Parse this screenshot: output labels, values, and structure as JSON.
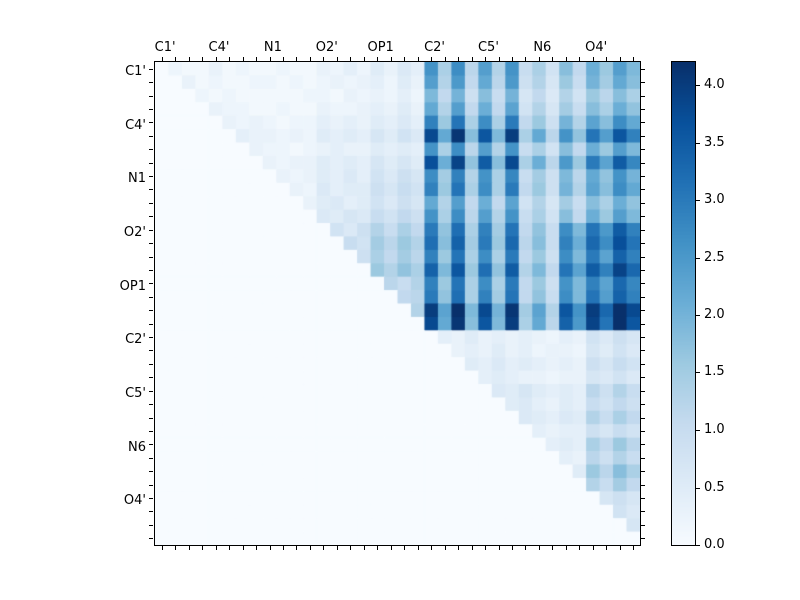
{
  "figure": {
    "background": "#ffffff",
    "plot_background": "#f7fbff"
  },
  "chart_data": {
    "type": "heatmap",
    "title": "",
    "xlabel": "",
    "ylabel": "",
    "colormap": "Blues",
    "colormap_stops": [
      "#f7fbff",
      "#deebf7",
      "#c6dbef",
      "#9ecae1",
      "#6baed6",
      "#4292c6",
      "#2171b5",
      "#08519c",
      "#08306b"
    ],
    "vmin": 0,
    "vmax": 4.2,
    "n": 36,
    "cells_per_group": 4,
    "group_labels": [
      "C1'",
      "C4'",
      "N1",
      "O2'",
      "OP1",
      "C2'",
      "C5'",
      "N6",
      "O4'"
    ],
    "x_labels": [
      "C1'",
      "C4'",
      "N1",
      "O2'",
      "OP1",
      "C2'",
      "C5'",
      "N6",
      "O4'"
    ],
    "y_labels": [
      "C1'",
      "C4'",
      "N1",
      "O2'",
      "OP1",
      "C2'",
      "C5'",
      "N6",
      "O4'"
    ],
    "legend_position": "right-colorbar",
    "grid": false,
    "colorbar_ticks": [
      "0.0",
      "0.5",
      "1.0",
      "1.5",
      "2.0",
      "2.5",
      "3.0",
      "3.5",
      "4.0"
    ],
    "colorbar_tick_values": [
      0,
      0.5,
      1.0,
      1.5,
      2.0,
      2.5,
      3.0,
      3.5,
      4.0
    ],
    "matrix": [
      [
        0,
        0.2,
        0.1,
        0.1,
        0.3,
        0.1,
        0.2,
        0.1,
        0.1,
        0.2,
        0.1,
        0.1,
        0.3,
        0.2,
        0.4,
        0.2,
        0.5,
        0.3,
        0.6,
        0.4,
        2.6,
        1.4,
        2.7,
        1.2,
        2.4,
        1.3,
        2.6,
        1.0,
        1.4,
        0.8,
        1.8,
        1.1,
        2.1,
        1.6,
        2.4,
        1.9
      ],
      [
        0,
        0,
        0.3,
        0.1,
        0.2,
        0.1,
        0.1,
        0.2,
        0.2,
        0.1,
        0.2,
        0.1,
        0.2,
        0.3,
        0.2,
        0.3,
        0.4,
        0.2,
        0.5,
        0.3,
        2.4,
        1.3,
        2.5,
        1.1,
        2.2,
        1.2,
        2.5,
        0.9,
        1.3,
        0.7,
        1.6,
        1.0,
        2.0,
        1.5,
        2.2,
        1.8
      ],
      [
        0,
        0,
        0,
        0.2,
        0.1,
        0.2,
        0.1,
        0.1,
        0.1,
        0.1,
        0.1,
        0.2,
        0.2,
        0.1,
        0.3,
        0.2,
        0.3,
        0.2,
        0.4,
        0.2,
        1.9,
        1.1,
        2.0,
        0.9,
        1.8,
        1.0,
        2.0,
        0.7,
        1.1,
        0.6,
        1.3,
        0.8,
        1.6,
        1.2,
        1.8,
        1.4
      ],
      [
        0,
        0,
        0,
        0,
        0.3,
        0.2,
        0.2,
        0.1,
        0.1,
        0.2,
        0.1,
        0.1,
        0.3,
        0.2,
        0.2,
        0.3,
        0.4,
        0.3,
        0.5,
        0.3,
        2.2,
        1.3,
        2.4,
        1.1,
        2.1,
        1.1,
        2.3,
        0.8,
        1.3,
        0.7,
        1.5,
        1.0,
        1.8,
        1.4,
        2.1,
        1.7
      ],
      [
        0,
        0,
        0,
        0,
        0,
        0.3,
        0.2,
        0.3,
        0.2,
        0.1,
        0.2,
        0.2,
        0.4,
        0.3,
        0.4,
        0.3,
        0.5,
        0.4,
        0.6,
        0.4,
        2.9,
        1.6,
        3.1,
        1.4,
        2.7,
        1.4,
        3.0,
        1.1,
        1.6,
        0.9,
        2.0,
        1.3,
        2.3,
        1.8,
        2.7,
        2.2
      ],
      [
        0,
        0,
        0,
        0,
        0,
        0,
        0.4,
        0.3,
        0.3,
        0.2,
        0.3,
        0.2,
        0.5,
        0.4,
        0.5,
        0.4,
        0.7,
        0.5,
        0.8,
        0.6,
        3.8,
        2.2,
        4.1,
        1.8,
        3.6,
        1.9,
        4.0,
        1.4,
        2.2,
        1.2,
        2.6,
        1.7,
        3.1,
        2.4,
        3.6,
        2.9
      ],
      [
        0,
        0,
        0,
        0,
        0,
        0,
        0,
        0.3,
        0.2,
        0.2,
        0.1,
        0.2,
        0.3,
        0.4,
        0.3,
        0.3,
        0.5,
        0.4,
        0.5,
        0.4,
        2.6,
        1.4,
        2.7,
        1.2,
        2.4,
        1.3,
        2.6,
        1.0,
        1.4,
        0.8,
        1.8,
        1.1,
        2.1,
        1.6,
        2.4,
        1.9
      ],
      [
        0,
        0,
        0,
        0,
        0,
        0,
        0,
        0,
        0.3,
        0.2,
        0.3,
        0.3,
        0.5,
        0.4,
        0.5,
        0.4,
        0.7,
        0.5,
        0.7,
        0.5,
        3.7,
        2.1,
        3.9,
        1.7,
        3.5,
        1.8,
        3.8,
        1.4,
        2.1,
        1.2,
        2.5,
        1.6,
        3.0,
        2.3,
        3.5,
        2.8
      ],
      [
        0,
        0,
        0,
        0,
        0,
        0,
        0,
        0,
        0,
        0.3,
        0.2,
        0.3,
        0.5,
        0.4,
        0.6,
        0.4,
        0.8,
        0.6,
        0.9,
        0.7,
        2.7,
        1.5,
        2.9,
        1.3,
        2.6,
        1.4,
        2.8,
        1.0,
        1.5,
        0.9,
        1.9,
        1.2,
        2.2,
        1.7,
        2.6,
        2.0
      ],
      [
        0,
        0,
        0,
        0,
        0,
        0,
        0,
        0,
        0,
        0,
        0.3,
        0.2,
        0.6,
        0.4,
        0.5,
        0.5,
        0.9,
        0.7,
        1.0,
        0.8,
        2.9,
        1.6,
        3.1,
        1.4,
        2.7,
        1.4,
        3.0,
        1.1,
        1.6,
        0.9,
        2.0,
        1.3,
        2.3,
        1.8,
        2.7,
        2.2
      ],
      [
        0,
        0,
        0,
        0,
        0,
        0,
        0,
        0,
        0,
        0,
        0,
        0.3,
        0.5,
        0.6,
        0.4,
        0.5,
        0.8,
        0.6,
        0.9,
        0.7,
        2.2,
        1.3,
        2.4,
        1.1,
        2.1,
        1.1,
        2.3,
        0.8,
        1.3,
        0.7,
        1.5,
        1.0,
        1.8,
        1.4,
        2.1,
        1.7
      ],
      [
        0,
        0,
        0,
        0,
        0,
        0,
        0,
        0,
        0,
        0,
        0,
        0,
        0.6,
        0.5,
        0.7,
        0.6,
        1.0,
        0.8,
        1.1,
        0.9,
        2.6,
        1.4,
        2.7,
        1.2,
        2.4,
        1.3,
        2.6,
        1.0,
        1.4,
        0.8,
        1.8,
        1.1,
        2.1,
        1.6,
        2.4,
        1.9
      ],
      [
        0,
        0,
        0,
        0,
        0,
        0,
        0,
        0,
        0,
        0,
        0,
        0,
        0,
        0.8,
        0.6,
        0.9,
        1.3,
        1.0,
        1.4,
        1.1,
        3.0,
        1.7,
        3.2,
        1.4,
        2.9,
        1.5,
        3.1,
        1.1,
        1.7,
        1.0,
        2.7,
        1.9,
        3.1,
        2.5,
        3.5,
        2.9
      ],
      [
        0,
        0,
        0,
        0,
        0,
        0,
        0,
        0,
        0,
        0,
        0,
        0,
        0,
        0,
        1.0,
        0.8,
        1.5,
        1.2,
        1.6,
        1.3,
        3.2,
        1.8,
        3.4,
        1.5,
        3.0,
        1.6,
        3.3,
        1.2,
        1.8,
        1.0,
        2.9,
        2.1,
        3.3,
        2.7,
        3.7,
        3.1
      ],
      [
        0,
        0,
        0,
        0,
        0,
        0,
        0,
        0,
        0,
        0,
        0,
        0,
        0,
        0,
        0,
        0.9,
        1.4,
        1.1,
        1.5,
        1.2,
        2.9,
        1.6,
        3.1,
        1.4,
        2.7,
        1.4,
        3.0,
        1.1,
        1.6,
        0.9,
        2.7,
        1.9,
        3.0,
        2.3,
        3.4,
        2.9
      ],
      [
        0,
        0,
        0,
        0,
        0,
        0,
        0,
        0,
        0,
        0,
        0,
        0,
        0,
        0,
        0,
        0,
        1.6,
        1.3,
        1.7,
        1.4,
        3.4,
        1.9,
        3.6,
        1.6,
        3.2,
        1.7,
        3.5,
        1.3,
        1.9,
        1.1,
        3.1,
        2.3,
        3.5,
        2.9,
        3.9,
        3.3
      ],
      [
        0,
        0,
        0,
        0,
        0,
        0,
        0,
        0,
        0,
        0,
        0,
        0,
        0,
        0,
        0,
        0,
        0,
        1.2,
        1.0,
        1.3,
        2.9,
        1.6,
        3.1,
        1.4,
        2.7,
        1.4,
        3.0,
        1.1,
        1.6,
        0.9,
        2.6,
        1.9,
        2.9,
        2.3,
        3.3,
        2.8
      ],
      [
        0,
        0,
        0,
        0,
        0,
        0,
        0,
        0,
        0,
        0,
        0,
        0,
        0,
        0,
        0,
        0,
        0,
        0,
        1.1,
        1.2,
        3.0,
        1.7,
        3.2,
        1.4,
        2.9,
        1.5,
        3.1,
        1.1,
        1.7,
        1.0,
        2.7,
        1.9,
        3.1,
        2.4,
        3.4,
        2.9
      ],
      [
        0,
        0,
        0,
        0,
        0,
        0,
        0,
        0,
        0,
        0,
        0,
        0,
        0,
        0,
        0,
        0,
        0,
        0,
        0,
        1.3,
        4.0,
        2.3,
        4.2,
        1.9,
        3.8,
        2.0,
        4.1,
        1.5,
        2.3,
        1.3,
        3.6,
        2.6,
        4.0,
        3.3,
        4.2,
        3.8
      ],
      [
        0,
        0,
        0,
        0,
        0,
        0,
        0,
        0,
        0,
        0,
        0,
        0,
        0,
        0,
        0,
        0,
        0,
        0,
        0,
        0,
        3.8,
        2.2,
        4.1,
        1.8,
        3.6,
        1.9,
        4.0,
        1.4,
        2.2,
        1.2,
        3.4,
        2.5,
        3.9,
        3.1,
        4.2,
        3.6
      ],
      [
        0,
        0,
        0,
        0,
        0,
        0,
        0,
        0,
        0,
        0,
        0,
        0,
        0,
        0,
        0,
        0,
        0,
        0,
        0,
        0,
        0,
        0.4,
        0.3,
        0.5,
        0.3,
        0.4,
        0.3,
        0.4,
        0.3,
        0.2,
        0.4,
        0.3,
        0.8,
        0.6,
        0.9,
        0.7
      ],
      [
        0,
        0,
        0,
        0,
        0,
        0,
        0,
        0,
        0,
        0,
        0,
        0,
        0,
        0,
        0,
        0,
        0,
        0,
        0,
        0,
        0,
        0,
        0.3,
        0.4,
        0.3,
        0.5,
        0.3,
        0.4,
        0.2,
        0.3,
        0.3,
        0.2,
        0.7,
        0.5,
        0.8,
        0.6
      ],
      [
        0,
        0,
        0,
        0,
        0,
        0,
        0,
        0,
        0,
        0,
        0,
        0,
        0,
        0,
        0,
        0,
        0,
        0,
        0,
        0,
        0,
        0,
        0,
        0.5,
        0.4,
        0.6,
        0.4,
        0.5,
        0.4,
        0.3,
        0.4,
        0.3,
        0.9,
        0.7,
        1.0,
        0.8
      ],
      [
        0,
        0,
        0,
        0,
        0,
        0,
        0,
        0,
        0,
        0,
        0,
        0,
        0,
        0,
        0,
        0,
        0,
        0,
        0,
        0,
        0,
        0,
        0,
        0,
        0.4,
        0.5,
        0.4,
        0.3,
        0.3,
        0.2,
        0.3,
        0.3,
        0.7,
        0.6,
        0.8,
        0.6
      ],
      [
        0,
        0,
        0,
        0,
        0,
        0,
        0,
        0,
        0,
        0,
        0,
        0,
        0,
        0,
        0,
        0,
        0,
        0,
        0,
        0,
        0,
        0,
        0,
        0,
        0,
        0.6,
        0.5,
        0.7,
        0.5,
        0.4,
        0.5,
        0.4,
        1.2,
        0.9,
        1.3,
        1.0
      ],
      [
        0,
        0,
        0,
        0,
        0,
        0,
        0,
        0,
        0,
        0,
        0,
        0,
        0,
        0,
        0,
        0,
        0,
        0,
        0,
        0,
        0,
        0,
        0,
        0,
        0,
        0,
        0.5,
        0.6,
        0.4,
        0.3,
        0.5,
        0.4,
        1.0,
        0.8,
        1.1,
        0.9
      ],
      [
        0,
        0,
        0,
        0,
        0,
        0,
        0,
        0,
        0,
        0,
        0,
        0,
        0,
        0,
        0,
        0,
        0,
        0,
        0,
        0,
        0,
        0,
        0,
        0,
        0,
        0,
        0,
        0.6,
        0.5,
        0.4,
        0.6,
        0.5,
        1.3,
        1.0,
        1.4,
        1.1
      ],
      [
        0,
        0,
        0,
        0,
        0,
        0,
        0,
        0,
        0,
        0,
        0,
        0,
        0,
        0,
        0,
        0,
        0,
        0,
        0,
        0,
        0,
        0,
        0,
        0,
        0,
        0,
        0,
        0,
        0.4,
        0.3,
        0.4,
        0.4,
        0.9,
        0.7,
        1.0,
        0.8
      ],
      [
        0,
        0,
        0,
        0,
        0,
        0,
        0,
        0,
        0,
        0,
        0,
        0,
        0,
        0,
        0,
        0,
        0,
        0,
        0,
        0,
        0,
        0,
        0,
        0,
        0,
        0,
        0,
        0,
        0,
        0.4,
        0.5,
        0.4,
        1.4,
        1.1,
        1.6,
        1.2
      ],
      [
        0,
        0,
        0,
        0,
        0,
        0,
        0,
        0,
        0,
        0,
        0,
        0,
        0,
        0,
        0,
        0,
        0,
        0,
        0,
        0,
        0,
        0,
        0,
        0,
        0,
        0,
        0,
        0,
        0,
        0,
        0.4,
        0.3,
        1.2,
        0.9,
        1.3,
        1.0
      ],
      [
        0,
        0,
        0,
        0,
        0,
        0,
        0,
        0,
        0,
        0,
        0,
        0,
        0,
        0,
        0,
        0,
        0,
        0,
        0,
        0,
        0,
        0,
        0,
        0,
        0,
        0,
        0,
        0,
        0,
        0,
        0,
        0.5,
        1.6,
        1.2,
        1.8,
        1.4
      ],
      [
        0,
        0,
        0,
        0,
        0,
        0,
        0,
        0,
        0,
        0,
        0,
        0,
        0,
        0,
        0,
        0,
        0,
        0,
        0,
        0,
        0,
        0,
        0,
        0,
        0,
        0,
        0,
        0,
        0,
        0,
        0,
        0,
        1.3,
        1.0,
        1.5,
        1.1
      ],
      [
        0,
        0,
        0,
        0,
        0,
        0,
        0,
        0,
        0,
        0,
        0,
        0,
        0,
        0,
        0,
        0,
        0,
        0,
        0,
        0,
        0,
        0,
        0,
        0,
        0,
        0,
        0,
        0,
        0,
        0,
        0,
        0,
        0,
        0.7,
        0.9,
        0.7
      ],
      [
        0,
        0,
        0,
        0,
        0,
        0,
        0,
        0,
        0,
        0,
        0,
        0,
        0,
        0,
        0,
        0,
        0,
        0,
        0,
        0,
        0,
        0,
        0,
        0,
        0,
        0,
        0,
        0,
        0,
        0,
        0,
        0,
        0,
        0,
        0.8,
        0.6
      ],
      [
        0,
        0,
        0,
        0,
        0,
        0,
        0,
        0,
        0,
        0,
        0,
        0,
        0,
        0,
        0,
        0,
        0,
        0,
        0,
        0,
        0,
        0,
        0,
        0,
        0,
        0,
        0,
        0,
        0,
        0,
        0,
        0,
        0,
        0,
        0,
        0.7
      ],
      [
        0,
        0,
        0,
        0,
        0,
        0,
        0,
        0,
        0,
        0,
        0,
        0,
        0,
        0,
        0,
        0,
        0,
        0,
        0,
        0,
        0,
        0,
        0,
        0,
        0,
        0,
        0,
        0,
        0,
        0,
        0,
        0,
        0,
        0,
        0,
        0
      ]
    ]
  }
}
